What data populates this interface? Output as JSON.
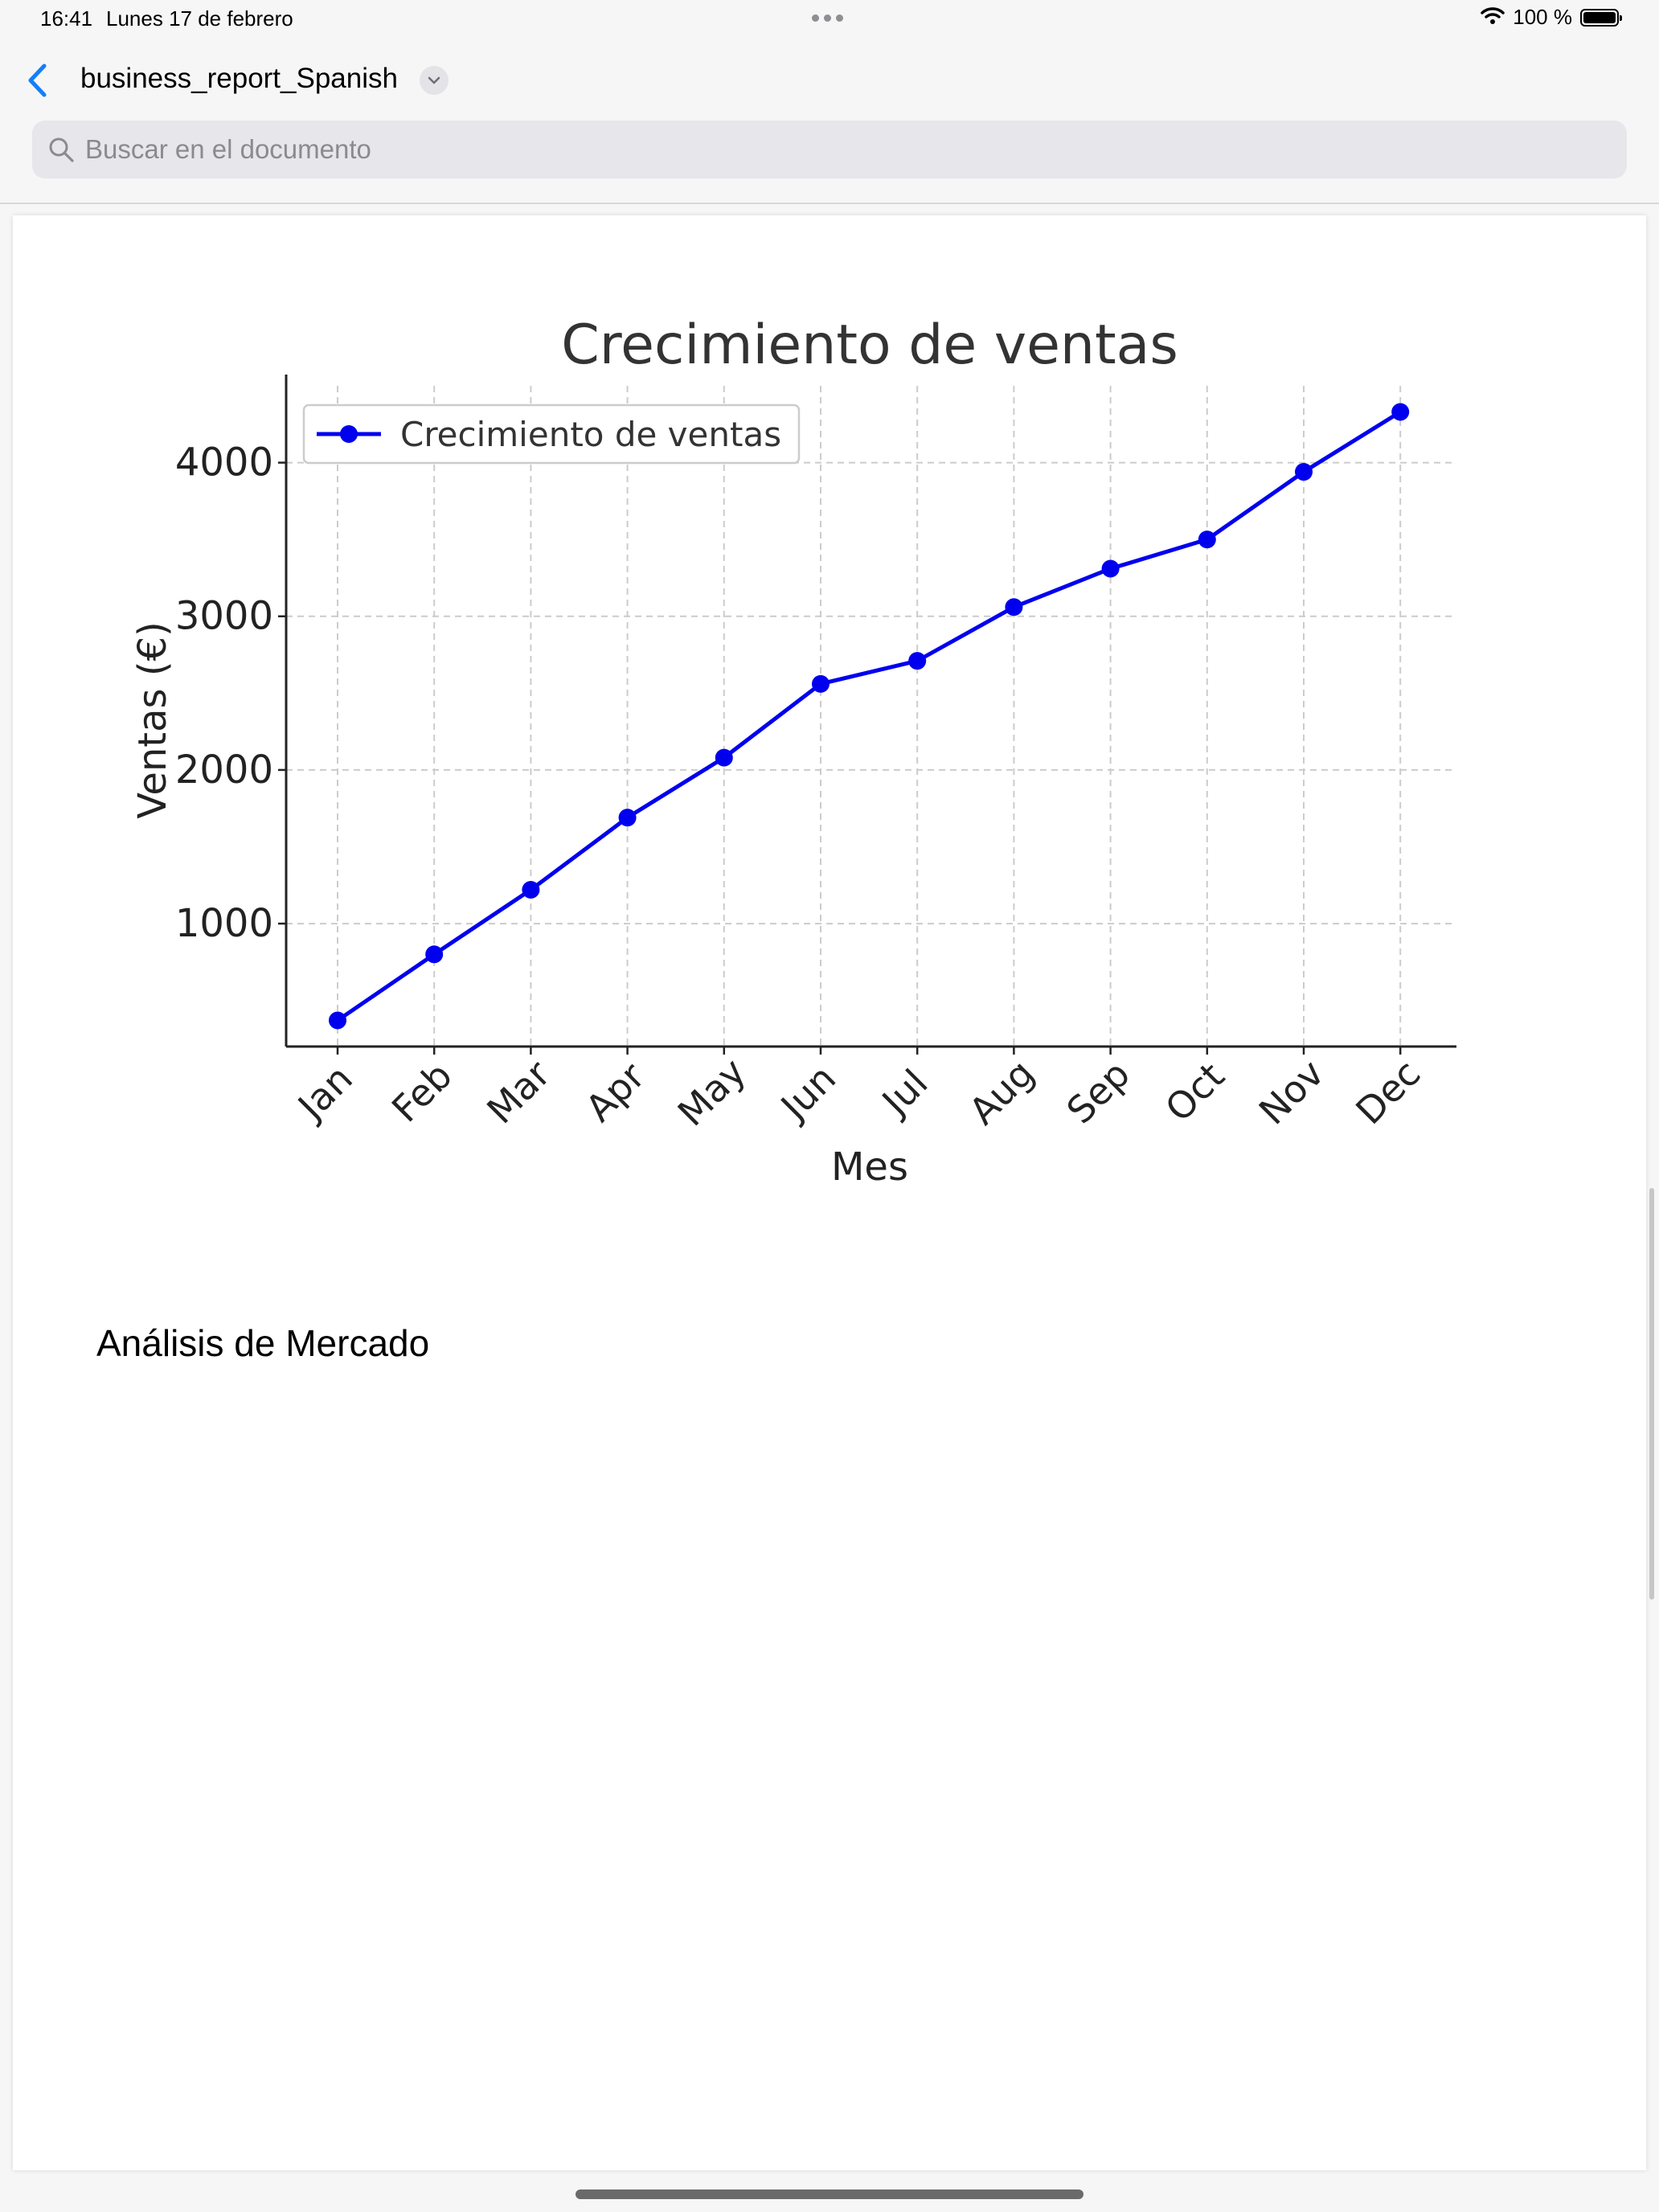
{
  "status_bar": {
    "time": "16:41",
    "date": "Lunes 17 de febrero",
    "battery": "100 %",
    "battery_level": 1.0
  },
  "nav": {
    "title": "business_report_Spanish"
  },
  "search": {
    "placeholder": "Buscar en el documento",
    "value": ""
  },
  "document": {
    "section_heading": "Análisis de Mercado"
  },
  "colors": {
    "series_color": "#0000ee",
    "accent": "#147efb"
  },
  "chart_data": {
    "type": "line",
    "title": "Crecimiento de ventas",
    "xlabel": "Mes",
    "ylabel": "Ventas (€)",
    "categories": [
      "Jan",
      "Feb",
      "Mar",
      "Apr",
      "May",
      "Jun",
      "Jul",
      "Aug",
      "Sep",
      "Oct",
      "Nov",
      "Dec"
    ],
    "series": [
      {
        "name": "Crecimiento de ventas",
        "values": [
          370,
          800,
          1220,
          1690,
          2080,
          2560,
          2710,
          3060,
          3310,
          3500,
          3940,
          4330
        ]
      }
    ],
    "ylim": [
      200,
      4500
    ],
    "yticks": [
      1000,
      2000,
      3000,
      4000
    ],
    "grid": true,
    "legend": "top-left"
  }
}
